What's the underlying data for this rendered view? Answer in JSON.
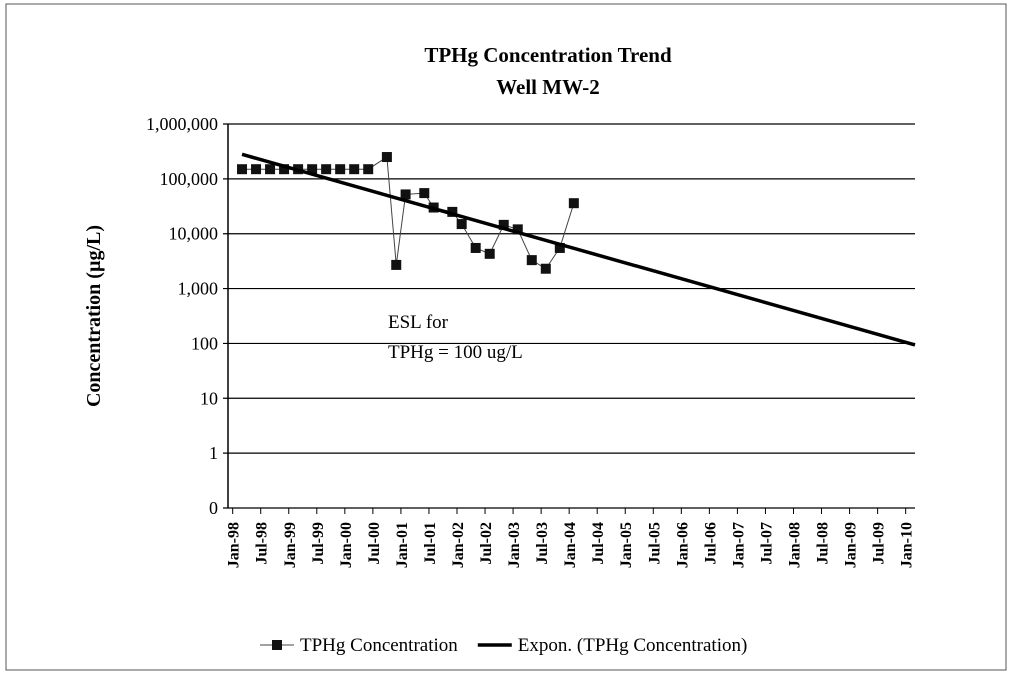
{
  "chart_data": {
    "type": "line",
    "title": "TPHg Concentration Trend",
    "subtitle": "Well MW-2",
    "y_label": "Concentration (µg/L)",
    "log_scale_y": true,
    "grid": true,
    "legend": "bottom",
    "annotations": [
      "ESL for",
      "TPHg = 100 ug/L"
    ],
    "xlim": [
      "1997-12",
      "2010-03"
    ],
    "xticks": [
      {
        "value": "1998-01",
        "label": "Jan-98"
      },
      {
        "value": "1998-07",
        "label": "Jul-98"
      },
      {
        "value": "1999-01",
        "label": "Jan-99"
      },
      {
        "value": "1999-07",
        "label": "Jul-99"
      },
      {
        "value": "2000-01",
        "label": "Jan-00"
      },
      {
        "value": "2000-07",
        "label": "Jul-00"
      },
      {
        "value": "2001-01",
        "label": "Jan-01"
      },
      {
        "value": "2001-07",
        "label": "Jul-01"
      },
      {
        "value": "2002-01",
        "label": "Jan-02"
      },
      {
        "value": "2002-07",
        "label": "Jul-02"
      },
      {
        "value": "2003-01",
        "label": "Jan-03"
      },
      {
        "value": "2003-07",
        "label": "Jul-03"
      },
      {
        "value": "2004-01",
        "label": "Jan-04"
      },
      {
        "value": "2004-07",
        "label": "Jul-04"
      },
      {
        "value": "2005-01",
        "label": "Jan-05"
      },
      {
        "value": "2005-07",
        "label": "Jul-05"
      },
      {
        "value": "2006-01",
        "label": "Jan-06"
      },
      {
        "value": "2006-07",
        "label": "Jul-06"
      },
      {
        "value": "2007-01",
        "label": "Jan-07"
      },
      {
        "value": "2007-07",
        "label": "Jul-07"
      },
      {
        "value": "2008-01",
        "label": "Jan-08"
      },
      {
        "value": "2008-07",
        "label": "Jul-08"
      },
      {
        "value": "2009-01",
        "label": "Jan-09"
      },
      {
        "value": "2009-07",
        "label": "Jul-09"
      },
      {
        "value": "2010-01",
        "label": "Jan-10"
      }
    ],
    "ylim": [
      0.1,
      1000000
    ],
    "yticks": [
      {
        "value": 0.1,
        "label": "0"
      },
      1,
      10,
      100,
      {
        "value": 1000,
        "label": "1,000"
      },
      {
        "value": 10000,
        "label": "10,000"
      },
      {
        "value": 100000,
        "label": "100,000"
      },
      {
        "value": 1000000,
        "label": "1,000,000"
      }
    ],
    "series": [
      {
        "name": "TPHg Concentration",
        "color": "#444444",
        "x": [
          "1998-03",
          "1998-06",
          "1998-09",
          "1998-12",
          "1999-03",
          "1999-06",
          "1999-09",
          "1999-12",
          "2000-03",
          "2000-06",
          "2000-10",
          "2000-12",
          "2001-02",
          "2001-06",
          "2001-08",
          "2001-12",
          "2002-02",
          "2002-05",
          "2002-08",
          "2002-11",
          "2003-02",
          "2003-05",
          "2003-08",
          "2003-11",
          "2004-02"
        ],
        "values": [
          150000,
          150000,
          150000,
          150000,
          150000,
          150000,
          150000,
          150000,
          150000,
          150000,
          250000,
          2700,
          52000,
          55000,
          30000,
          25000,
          15000,
          5500,
          4300,
          14500,
          12000,
          3300,
          2300,
          5500,
          36000
        ]
      },
      {
        "name": "Expon. (TPHg Concentration)",
        "color": "#000000",
        "x": [
          "1998-03",
          "2010-03"
        ],
        "values": [
          280000,
          94
        ]
      }
    ]
  }
}
